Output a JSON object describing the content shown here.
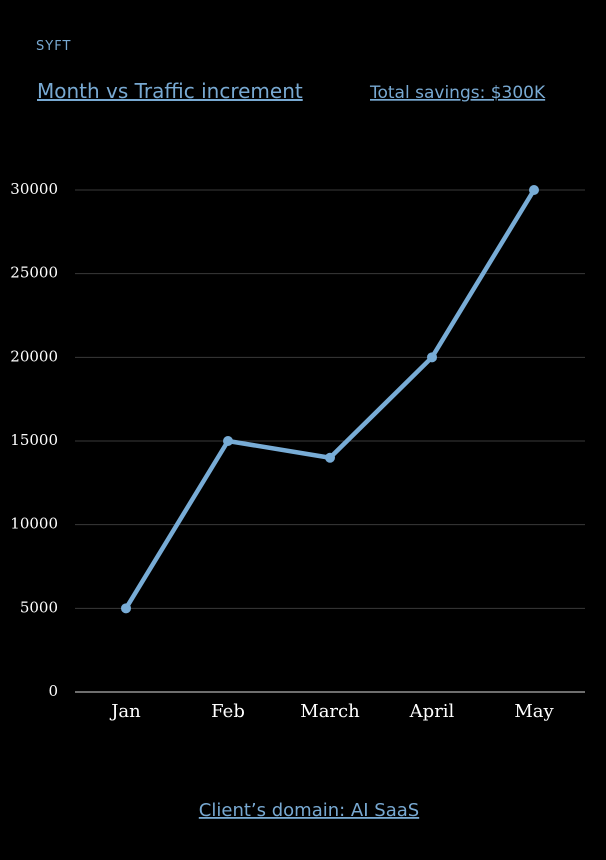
{
  "brand": "SYFT",
  "total_savings": "Total savings: $300K",
  "footer": "Client’s domain: AI SaaS",
  "chart_data": {
    "type": "line",
    "title": "Month vs Traffic increment",
    "categories": [
      "Jan",
      "Feb",
      "March",
      "April",
      "May"
    ],
    "values": [
      5000,
      15000,
      14000,
      20000,
      30000
    ],
    "color": "#78acd6",
    "ylim": [
      0,
      30000
    ],
    "yticks": [
      0,
      5000,
      10000,
      15000,
      20000,
      25000,
      30000
    ],
    "grid": true
  }
}
